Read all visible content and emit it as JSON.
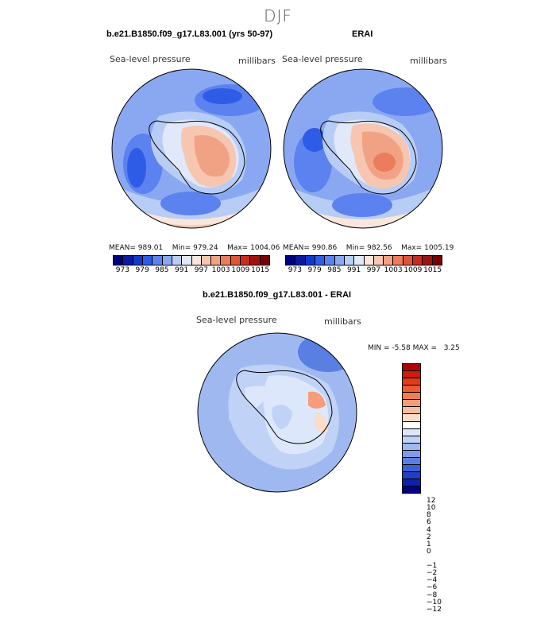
{
  "season": "DJF",
  "panels": {
    "model": {
      "title": "b.e21.B1850.f09_g17.L83.001 (yrs 50-97)",
      "variable": "Sea-level pressure",
      "units": "millibars",
      "mean_label": "MEAN=",
      "mean": "989.01",
      "min_label": "Min=",
      "min": "979.24",
      "max_label": "Max=",
      "max": "1004.06"
    },
    "obs": {
      "title": "ERAI",
      "variable": "Sea-level pressure",
      "units": "millibars",
      "mean_label": "MEAN=",
      "mean": "990.86",
      "min_label": "Min=",
      "min": "982.56",
      "max_label": "Max=",
      "max": "1005.19"
    },
    "diff": {
      "title": "b.e21.B1850.f09_g17.L83.001 - ERAI",
      "variable": "Sea-level pressure",
      "units": "millibars",
      "min_label": "MIN =",
      "min": "-5.58",
      "max_label": "MAX =",
      "max": "3.25"
    }
  },
  "colorbar_abs": {
    "colors": [
      "#00007a",
      "#0a1a9e",
      "#1438c8",
      "#2f5ce6",
      "#5b82ee",
      "#8aa8f2",
      "#b8cdf6",
      "#e0e8fa",
      "#fbe6dc",
      "#f7c6b0",
      "#f2a284",
      "#ec7c5c",
      "#e0543a",
      "#c42e1e",
      "#9c1410",
      "#780000"
    ],
    "ticks": [
      "973",
      "979",
      "985",
      "991",
      "997",
      "1003",
      "1009",
      "1015"
    ]
  },
  "colorbar_diff": {
    "colors": [
      "#b00000",
      "#d01a0a",
      "#e33a18",
      "#ee5a30",
      "#f27c52",
      "#f59c78",
      "#f8bda0",
      "#fbdcc8",
      "#ffffff",
      "#dde7fb",
      "#c0d2f6",
      "#9fb9f0",
      "#7d9de9",
      "#5a7fe2",
      "#3b5fd8",
      "#1f3fc6",
      "#0e22a8",
      "#000086"
    ],
    "ticks": [
      "12",
      "10",
      "8",
      "6",
      "4",
      "2",
      "1",
      "0",
      "−1",
      "−2",
      "−4",
      "−6",
      "−8",
      "−10",
      "−12"
    ]
  }
}
